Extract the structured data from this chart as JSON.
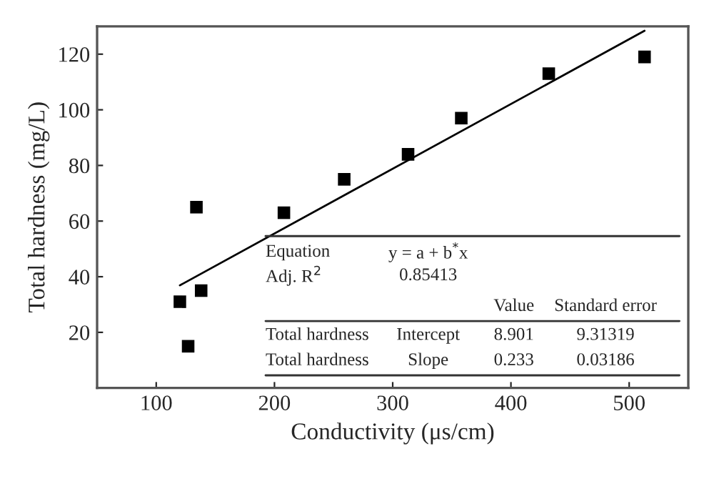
{
  "chart_data": {
    "type": "scatter",
    "xlabel": "Conductivity (μs/cm)",
    "ylabel": "Total hardness (mg/L)",
    "xlim": [
      50,
      550
    ],
    "xticks": [
      100,
      200,
      300,
      400,
      500
    ],
    "ylim": [
      0,
      130
    ],
    "yticks": [
      20,
      40,
      60,
      80,
      100,
      120
    ],
    "grid": false,
    "legend": false,
    "series": [
      {
        "marker": "square",
        "color": "#000000",
        "x": [
          120,
          127,
          134,
          138,
          208,
          259,
          313,
          358,
          432,
          513
        ],
        "values": [
          31,
          15,
          65,
          35,
          63,
          75,
          84,
          97,
          113,
          119
        ]
      },
      {
        "type": "line",
        "marker": "none",
        "color": "#000000",
        "x": [
          120,
          513
        ],
        "values": [
          36.9,
          128.4
        ]
      }
    ],
    "annotations": [
      "Equation",
      "y = a + b$^{*}$x",
      "Adj. R$^{2}$",
      "0.85413",
      "Value",
      "Standard error",
      "Total hardness",
      "Intercept",
      "8.901",
      "9.31319",
      "Total hardness",
      "Slope",
      "0.233",
      "0.03186"
    ]
  }
}
